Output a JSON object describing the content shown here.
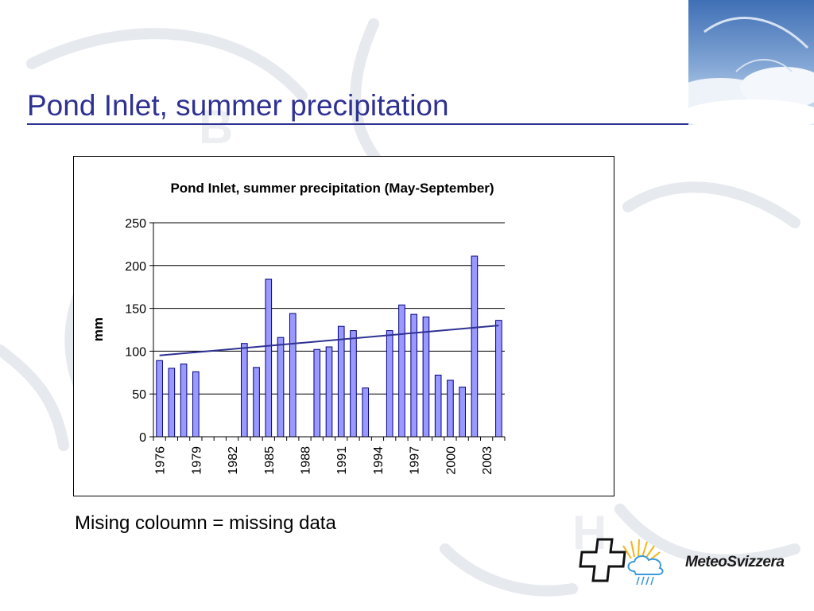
{
  "slide": {
    "title": "Pond Inlet, summer precipitation",
    "caption": "Mising coloumn = missing data"
  },
  "logo": {
    "text": "MeteoSvizzera"
  },
  "colors": {
    "title": "#2e3192",
    "bar_fill": "#9999ff",
    "trend_line": "#2e3192"
  },
  "chart_data": {
    "type": "bar",
    "title": "Pond Inlet, summer precipitation (May-September)",
    "xlabel": "",
    "ylabel": "mm",
    "ylim": [
      0,
      250
    ],
    "yticks": [
      0,
      50,
      100,
      150,
      200,
      250
    ],
    "grid": "horizontal",
    "categories": [
      "1976",
      "1977",
      "1978",
      "1979",
      "1980",
      "1981",
      "1982",
      "1983",
      "1984",
      "1985",
      "1986",
      "1987",
      "1988",
      "1989",
      "1990",
      "1991",
      "1992",
      "1993",
      "1994",
      "1995",
      "1996",
      "1997",
      "1998",
      "1999",
      "2000",
      "2001",
      "2002",
      "2003",
      "2004"
    ],
    "xtick_labels": [
      "1976",
      "1979",
      "1982",
      "1985",
      "1988",
      "1991",
      "1994",
      "1997",
      "2000",
      "2003"
    ],
    "values": [
      89,
      80,
      85,
      76,
      null,
      null,
      null,
      109,
      81,
      184,
      116,
      144,
      null,
      102,
      105,
      129,
      124,
      57,
      null,
      124,
      154,
      143,
      140,
      72,
      66,
      58,
      211,
      null,
      136
    ],
    "trend_line": {
      "start": [
        1976,
        95
      ],
      "end": [
        2004,
        130
      ]
    }
  }
}
